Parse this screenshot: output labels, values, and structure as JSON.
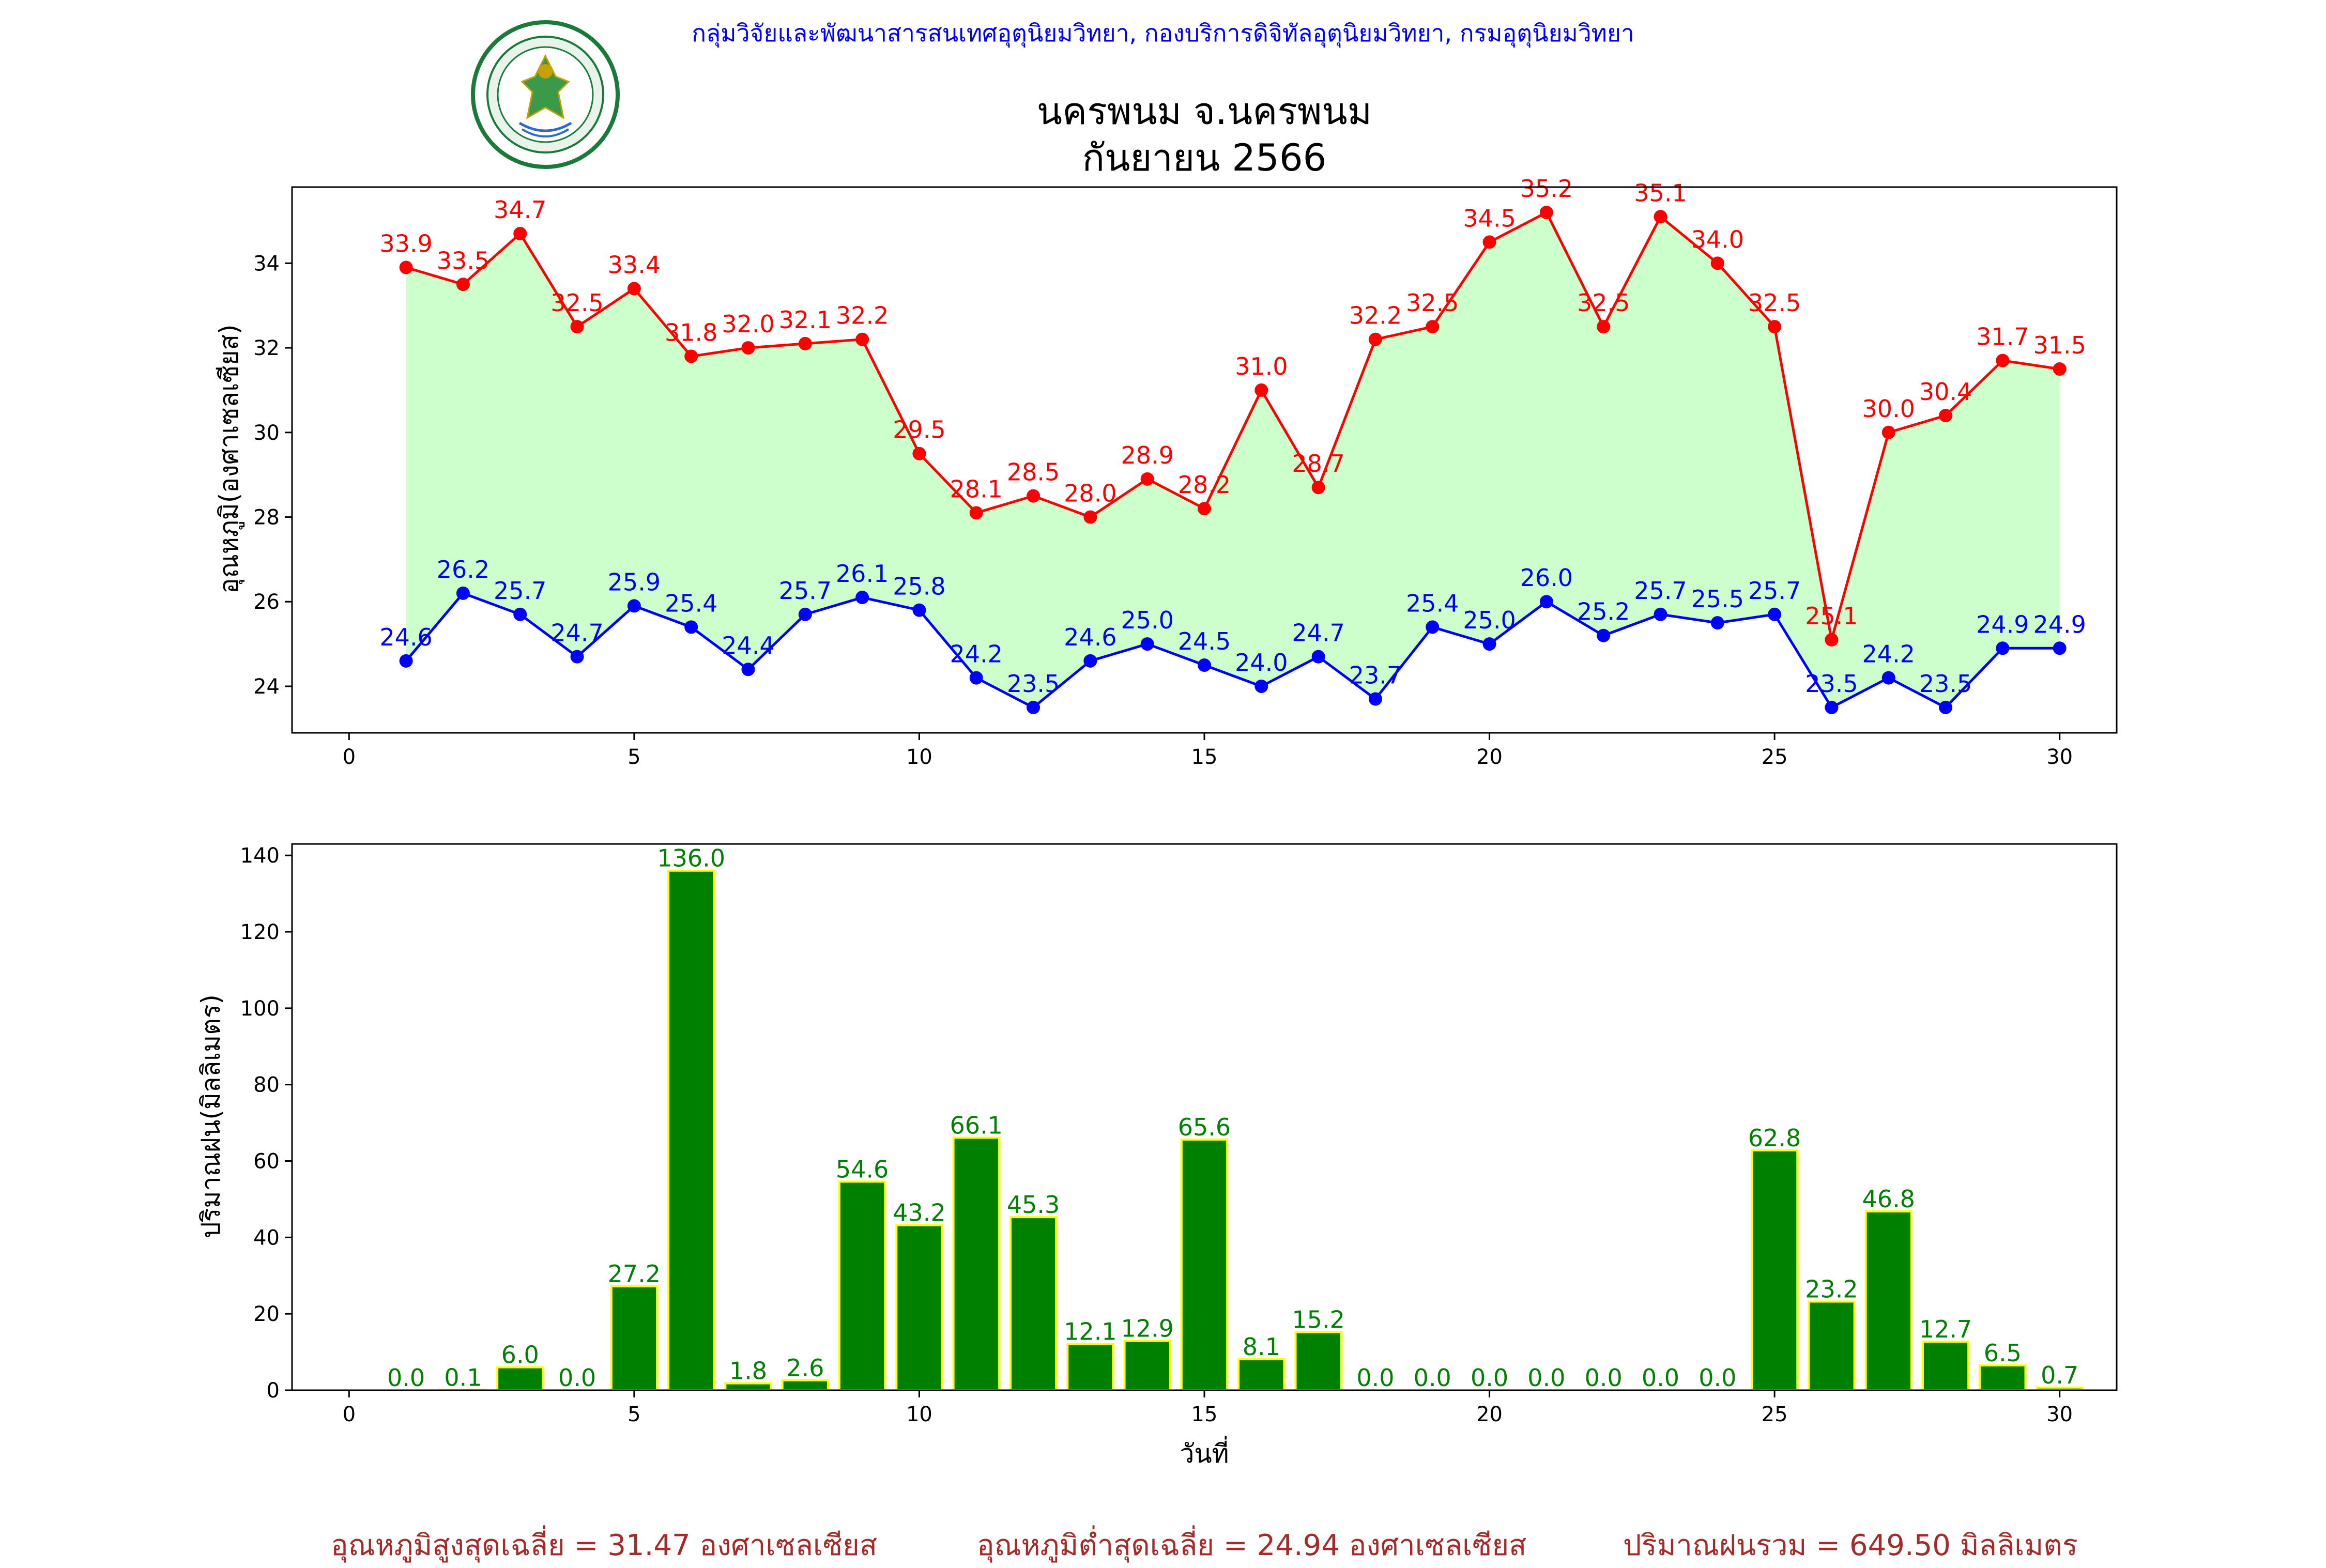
{
  "header": {
    "department_line": "กลุ่มวิจัยและพัฒนาสารสนเทศอุตุนิยมวิทยา, กองบริการดิจิทัลอุตุนิยมวิทยา, กรมอุตุนิยมวิทยา",
    "logo_text_top": "กรมอุตุนิยมวิทยา",
    "logo_text_bottom": "METEOROLOGICAL DEPARTMENT"
  },
  "title": {
    "line1": "นครพนม จ.นครพนม",
    "line2": "กันยายน 2566"
  },
  "colors": {
    "max_temp": "#ff0000",
    "min_temp": "#0000ff",
    "fill": "#ccffcc",
    "rain_bar": "#008000",
    "rain_edge": "#ffff00",
    "rain_label": "#008000",
    "summary": "#a52a2a",
    "header": "#0000ff"
  },
  "chart_data": [
    {
      "type": "line",
      "ylabel": "อุณหภูมิ(องศาเซลเซียส)",
      "xlabel": "",
      "x": [
        1,
        2,
        3,
        4,
        5,
        6,
        7,
        8,
        9,
        10,
        11,
        12,
        13,
        14,
        15,
        16,
        17,
        18,
        19,
        20,
        21,
        22,
        23,
        24,
        25,
        26,
        27,
        28,
        29,
        30
      ],
      "series": [
        {
          "values": [
            33.9,
            33.5,
            34.7,
            32.5,
            33.4,
            31.8,
            32.0,
            32.1,
            32.2,
            29.5,
            28.1,
            28.5,
            28.0,
            28.9,
            28.2,
            31.0,
            28.7,
            32.2,
            32.5,
            34.5,
            35.2,
            32.5,
            35.1,
            34.0,
            32.5,
            25.1,
            30.0,
            30.4,
            31.7,
            31.5
          ]
        },
        {
          "values": [
            24.6,
            26.2,
            25.7,
            24.7,
            25.9,
            25.4,
            24.4,
            25.7,
            26.1,
            25.8,
            24.2,
            23.5,
            24.6,
            25.0,
            24.5,
            24.0,
            24.7,
            23.7,
            25.4,
            25.0,
            26.0,
            25.2,
            25.7,
            25.5,
            25.7,
            23.5,
            24.2,
            23.5,
            24.9,
            24.9
          ]
        }
      ],
      "fill_between": true,
      "xlim": [
        -1,
        31
      ],
      "ylim": [
        22.9,
        35.8
      ],
      "xticks": [
        0,
        5,
        10,
        15,
        20,
        25,
        30
      ],
      "yticks": [
        24,
        26,
        28,
        30,
        32,
        34
      ],
      "grid": false
    },
    {
      "type": "bar",
      "ylabel": "ปริมาณฝน(มิลลิเมตร)",
      "xlabel": "วันที่",
      "x": [
        1,
        2,
        3,
        4,
        5,
        6,
        7,
        8,
        9,
        10,
        11,
        12,
        13,
        14,
        15,
        16,
        17,
        18,
        19,
        20,
        21,
        22,
        23,
        24,
        25,
        26,
        27,
        28,
        29,
        30
      ],
      "values": [
        0.0,
        0.1,
        6.0,
        0.0,
        27.2,
        136.0,
        1.8,
        2.6,
        54.6,
        43.2,
        66.1,
        45.3,
        12.1,
        12.9,
        65.6,
        8.1,
        15.2,
        0.0,
        0.0,
        0.0,
        0.0,
        0.0,
        0.0,
        0.0,
        62.8,
        23.2,
        46.8,
        12.7,
        6.5,
        0.7
      ],
      "xlim": [
        -1,
        31
      ],
      "ylim": [
        0,
        143
      ],
      "xticks": [
        0,
        5,
        10,
        15,
        20,
        25,
        30
      ],
      "yticks": [
        0,
        20,
        40,
        60,
        80,
        100,
        120,
        140
      ],
      "grid": false
    }
  ],
  "summary": {
    "avg_max": "อุณหภูมิสูงสุดเฉลี่ย = 31.47 องศาเซลเซียส",
    "avg_min": "อุณหภูมิต่ำสุดเฉลี่ย = 24.94 องศาเซลเซียส",
    "total_rain": "ปริมาณฝนรวม = 649.50 มิลลิเมตร"
  }
}
